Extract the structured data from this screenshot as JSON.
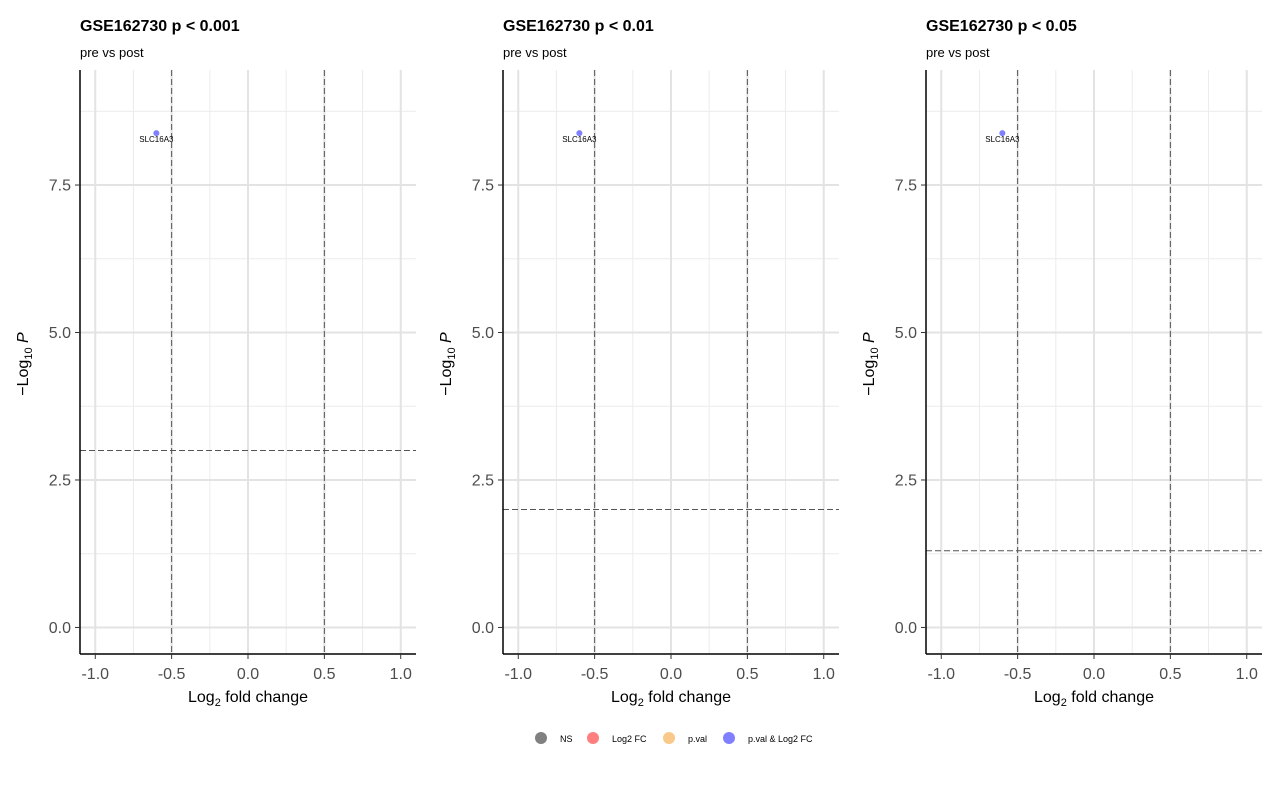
{
  "chart_data": [
    {
      "type": "scatter",
      "title": "GSE162730 p < 0.001",
      "subtitle": "pre vs post",
      "xlabel": "Log2 fold change",
      "ylabel": "−Log10 P",
      "xlim": [
        -1.1,
        1.1
      ],
      "ylim": [
        -0.45,
        9.45
      ],
      "xticks": [
        "-1.0",
        "-0.5",
        "0.0",
        "0.5",
        "1.0"
      ],
      "yticks": [
        "0.0",
        "2.5",
        "5.0",
        "7.5"
      ],
      "grid": true,
      "fc_cutoff": [
        -0.5,
        0.5
      ],
      "p_cutoff": 3.0,
      "points": [
        {
          "x": -0.6,
          "y": 8.38,
          "label": "SLC16A3",
          "group": "p.val & Log2 FC"
        }
      ]
    },
    {
      "type": "scatter",
      "title": "GSE162730 p < 0.01",
      "subtitle": "pre vs post",
      "xlabel": "Log2 fold change",
      "ylabel": "−Log10 P",
      "xlim": [
        -1.1,
        1.1
      ],
      "ylim": [
        -0.45,
        9.45
      ],
      "xticks": [
        "-1.0",
        "-0.5",
        "0.0",
        "0.5",
        "1.0"
      ],
      "yticks": [
        "0.0",
        "2.5",
        "5.0",
        "7.5"
      ],
      "grid": true,
      "fc_cutoff": [
        -0.5,
        0.5
      ],
      "p_cutoff": 2.0,
      "points": [
        {
          "x": -0.6,
          "y": 8.38,
          "label": "SLC16A3",
          "group": "p.val & Log2 FC"
        }
      ]
    },
    {
      "type": "scatter",
      "title": "GSE162730 p < 0.05",
      "subtitle": "pre vs post",
      "xlabel": "Log2 fold change",
      "ylabel": "−Log10 P",
      "xlim": [
        -1.1,
        1.1
      ],
      "ylim": [
        -0.45,
        9.45
      ],
      "xticks": [
        "-1.0",
        "-0.5",
        "0.0",
        "0.5",
        "1.0"
      ],
      "yticks": [
        "0.0",
        "2.5",
        "5.0",
        "7.5"
      ],
      "grid": true,
      "fc_cutoff": [
        -0.5,
        0.5
      ],
      "p_cutoff": 1.3,
      "points": [
        {
          "x": -0.6,
          "y": 8.38,
          "label": "SLC16A3",
          "group": "p.val & Log2 FC"
        }
      ]
    }
  ],
  "legend": {
    "position": "bottom",
    "items": [
      {
        "label": "NS",
        "color": "#808080"
      },
      {
        "label": "Log2 FC",
        "color": "#ff7f7f"
      },
      {
        "label": "p.val",
        "color": "#f8c98a"
      },
      {
        "label": "p.val & Log2 FC",
        "color": "#7f7fff"
      }
    ]
  }
}
